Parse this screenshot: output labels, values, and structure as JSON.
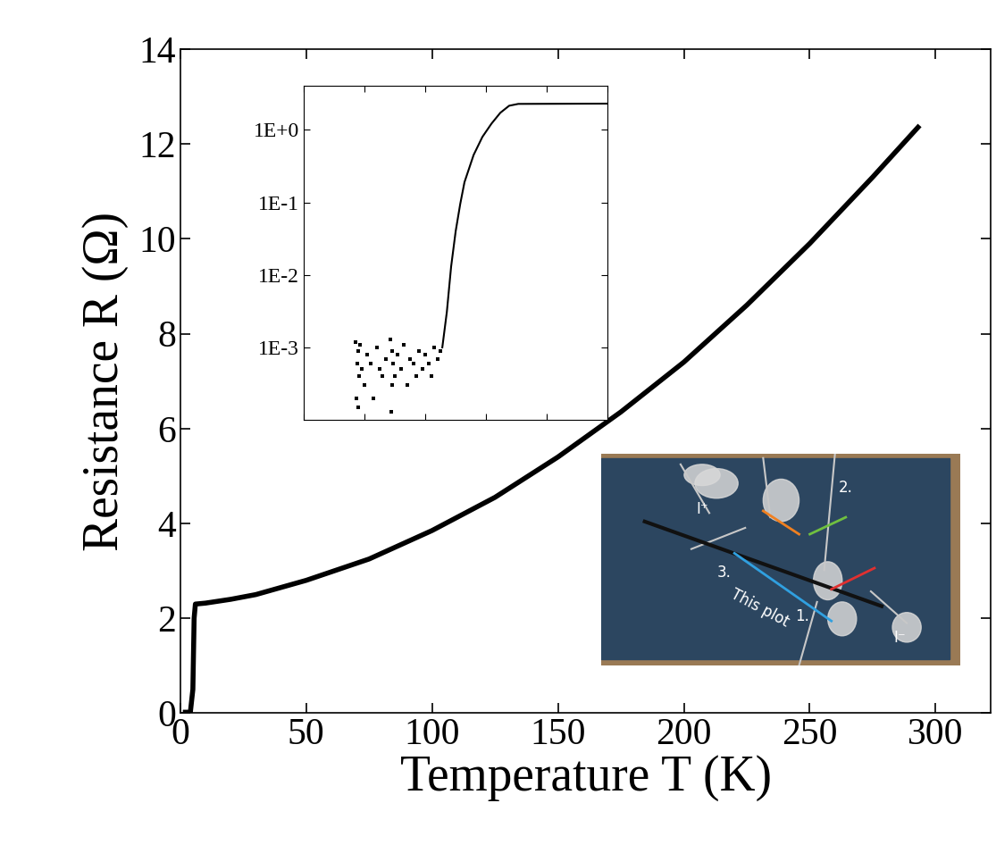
{
  "chart_data": [
    {
      "type": "line",
      "x_label": "Temperature T (K)",
      "y_label": "Resistance R (Ω)",
      "x": [
        2,
        4,
        5,
        5.5,
        6,
        10,
        20,
        30,
        50,
        75,
        100,
        125,
        150,
        175,
        200,
        225,
        250,
        275,
        293
      ],
      "values": [
        0.02,
        0.02,
        0.5,
        2.0,
        2.3,
        2.32,
        2.4,
        2.5,
        2.8,
        3.25,
        3.85,
        4.55,
        5.4,
        6.35,
        7.4,
        8.6,
        9.9,
        11.3,
        12.35
      ],
      "color": "#000000",
      "xlim": [
        0,
        322
      ],
      "xticks": [
        0,
        50,
        100,
        150,
        200,
        250,
        300
      ],
      "ylim": [
        0,
        14
      ],
      "yticks": [
        0,
        2,
        4,
        6,
        8,
        10,
        12,
        14
      ]
    },
    {
      "type": "scatter",
      "log": "y",
      "tick_labels": "y",
      "series": [
        {
          "type": "scatter",
          "marker": "square",
          "color": "#000000",
          "x": [
            1.7,
            1.72,
            1.75,
            1.78,
            1.8,
            1.82,
            1.85,
            1.9,
            2.0,
            2.1,
            2.2,
            2.3,
            2.4,
            2.5,
            2.6,
            2.7,
            2.85,
            2.87,
            2.9,
            2.92,
            2.95,
            3.0,
            3.1,
            3.2,
            3.3,
            3.4,
            3.5,
            3.6,
            3.7,
            3.8,
            3.9,
            4.0,
            4.1,
            4.2,
            4.3,
            4.4,
            4.5
          ],
          "values": [
            0.0012,
            0.0002,
            0.0006,
            0.0009,
            0.00015,
            0.0004,
            0.0011,
            0.0005,
            0.0003,
            0.0008,
            0.0006,
            0.0002,
            0.001,
            0.0005,
            0.0004,
            0.0007,
            0.0013,
            0.00013,
            0.0009,
            0.0003,
            0.0006,
            0.0004,
            0.0008,
            0.0005,
            0.0011,
            0.0003,
            0.0007,
            0.0006,
            0.0004,
            0.0009,
            0.0005,
            0.0008,
            0.0006,
            0.0004,
            0.001,
            0.0007,
            0.0009
          ]
        },
        {
          "type": "line",
          "color": "#000000",
          "x": [
            4.56,
            4.71,
            4.85,
            5.0,
            5.15,
            5.29,
            5.59,
            5.88,
            6.18,
            6.47,
            6.76,
            7.06,
            10
          ],
          "values": [
            0.001,
            0.0031,
            0.013,
            0.04,
            0.095,
            0.19,
            0.45,
            0.8,
            1.22,
            1.72,
            2.15,
            2.28,
            2.3
          ]
        }
      ],
      "xlim": [
        0,
        10
      ],
      "xticks": [
        0,
        2,
        4,
        6,
        8,
        10
      ],
      "ylim": [
        0.0001,
        4
      ],
      "yticks": [
        {
          "value": 1,
          "label": "1E+0"
        },
        {
          "value": 0.1,
          "label": "1E-1"
        },
        {
          "value": 0.01,
          "label": "1E-2"
        },
        {
          "value": 0.001,
          "label": "1E-3"
        }
      ]
    }
  ],
  "photo": {
    "labels": [
      "I⁺",
      "I⁻",
      "1.",
      "2.",
      "3.",
      "This plot"
    ]
  }
}
